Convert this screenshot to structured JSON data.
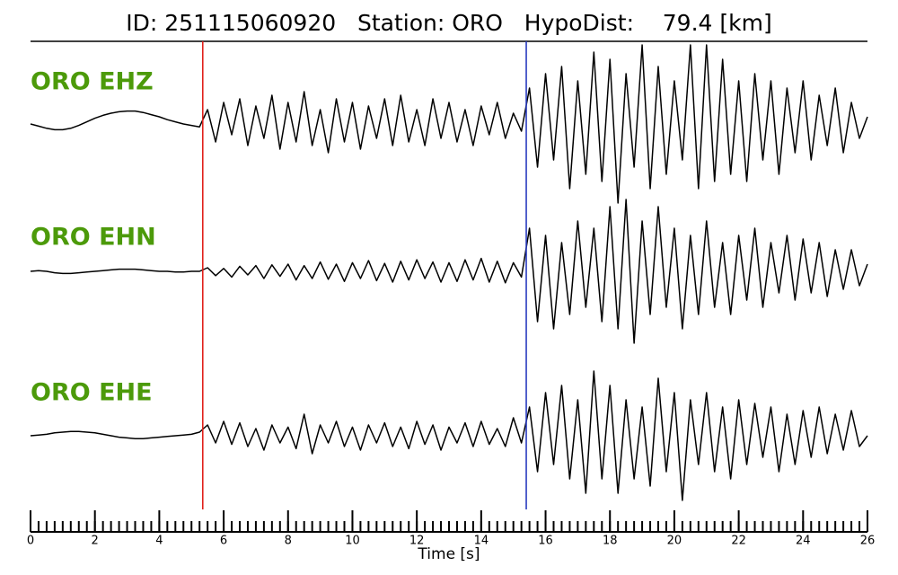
{
  "chart_data": {
    "type": "line",
    "title": "ID: 251115060920   Station: ORO   HypoDist:    79.4 [km]",
    "xlabel": "Time [s]",
    "x": [
      0,
      0.25,
      0.5,
      0.75,
      1,
      1.25,
      1.5,
      1.75,
      2,
      2.25,
      2.5,
      2.75,
      3,
      3.25,
      3.5,
      3.75,
      4,
      4.25,
      4.5,
      4.75,
      5,
      5.25,
      5.5,
      5.75,
      6,
      6.25,
      6.5,
      6.75,
      7,
      7.25,
      7.5,
      7.75,
      8,
      8.25,
      8.5,
      8.75,
      9,
      9.25,
      9.5,
      9.75,
      10,
      10.25,
      10.5,
      10.75,
      11,
      11.25,
      11.5,
      11.75,
      12,
      12.25,
      12.5,
      12.75,
      13,
      13.25,
      13.5,
      13.75,
      14,
      14.25,
      14.5,
      14.75,
      15,
      15.25,
      15.5,
      15.75,
      16,
      16.25,
      16.5,
      16.75,
      17,
      17.25,
      17.5,
      17.75,
      18,
      18.25,
      18.5,
      18.75,
      19,
      19.25,
      19.5,
      19.75,
      20,
      20.25,
      20.5,
      20.75,
      21,
      21.25,
      21.5,
      21.75,
      22,
      22.25,
      22.5,
      22.75,
      23,
      23.25,
      23.5,
      23.75,
      24,
      24.25,
      24.5,
      24.75,
      25,
      25.25,
      25.5,
      25.75,
      26
    ],
    "series": [
      {
        "name": "ORO EHZ",
        "color": "#000000",
        "label_color": "#4c9a0a",
        "values": [
          0.0,
          -0.03,
          -0.06,
          -0.08,
          -0.08,
          -0.06,
          -0.02,
          0.03,
          0.08,
          0.12,
          0.15,
          0.17,
          0.18,
          0.18,
          0.16,
          0.13,
          0.1,
          0.06,
          0.03,
          0.0,
          -0.02,
          -0.04,
          0.2,
          -0.25,
          0.3,
          -0.15,
          0.35,
          -0.3,
          0.25,
          -0.2,
          0.4,
          -0.35,
          0.3,
          -0.25,
          0.45,
          -0.3,
          0.2,
          -0.4,
          0.35,
          -0.25,
          0.3,
          -0.35,
          0.25,
          -0.2,
          0.35,
          -0.3,
          0.4,
          -0.25,
          0.2,
          -0.3,
          0.35,
          -0.2,
          0.3,
          -0.25,
          0.2,
          -0.3,
          0.25,
          -0.15,
          0.3,
          -0.2,
          0.15,
          -0.1,
          0.5,
          -0.6,
          0.7,
          -0.5,
          0.8,
          -0.9,
          0.6,
          -0.7,
          1.0,
          -0.8,
          0.9,
          -1.1,
          0.7,
          -0.6,
          1.1,
          -0.9,
          0.8,
          -0.7,
          0.6,
          -0.5,
          1.1,
          -0.9,
          1.1,
          -0.8,
          0.9,
          -0.7,
          0.6,
          -0.8,
          0.7,
          -0.5,
          0.6,
          -0.7,
          0.5,
          -0.4,
          0.6,
          -0.5,
          0.4,
          -0.3,
          0.5,
          -0.4,
          0.3,
          -0.2,
          0.1
        ]
      },
      {
        "name": "ORO EHN",
        "color": "#000000",
        "label_color": "#4c9a0a",
        "values": [
          0.0,
          0.01,
          0.0,
          -0.02,
          -0.03,
          -0.03,
          -0.02,
          -0.01,
          0.0,
          0.01,
          0.02,
          0.03,
          0.03,
          0.03,
          0.02,
          0.01,
          0.0,
          0.0,
          -0.01,
          -0.01,
          0.0,
          0.0,
          0.05,
          -0.06,
          0.04,
          -0.08,
          0.07,
          -0.05,
          0.08,
          -0.1,
          0.09,
          -0.07,
          0.1,
          -0.12,
          0.08,
          -0.1,
          0.13,
          -0.11,
          0.1,
          -0.14,
          0.12,
          -0.1,
          0.15,
          -0.13,
          0.11,
          -0.15,
          0.14,
          -0.12,
          0.16,
          -0.1,
          0.13,
          -0.15,
          0.12,
          -0.14,
          0.16,
          -0.12,
          0.18,
          -0.15,
          0.14,
          -0.16,
          0.12,
          -0.08,
          0.6,
          -0.7,
          0.5,
          -0.8,
          0.4,
          -0.6,
          0.7,
          -0.5,
          0.6,
          -0.7,
          0.9,
          -0.8,
          1.0,
          -1.0,
          0.7,
          -0.6,
          0.9,
          -0.5,
          0.6,
          -0.8,
          0.5,
          -0.6,
          0.7,
          -0.5,
          0.4,
          -0.6,
          0.5,
          -0.4,
          0.6,
          -0.5,
          0.4,
          -0.3,
          0.5,
          -0.4,
          0.45,
          -0.3,
          0.4,
          -0.35,
          0.3,
          -0.25,
          0.3,
          -0.2,
          0.1
        ]
      },
      {
        "name": "ORO EHE",
        "color": "#000000",
        "label_color": "#4c9a0a",
        "values": [
          0.0,
          0.01,
          0.02,
          0.04,
          0.05,
          0.06,
          0.06,
          0.05,
          0.04,
          0.02,
          0.0,
          -0.02,
          -0.03,
          -0.04,
          -0.04,
          -0.03,
          -0.02,
          -0.01,
          0.0,
          0.01,
          0.02,
          0.05,
          0.15,
          -0.1,
          0.2,
          -0.12,
          0.18,
          -0.15,
          0.1,
          -0.2,
          0.15,
          -0.1,
          0.12,
          -0.18,
          0.3,
          -0.25,
          0.15,
          -0.1,
          0.2,
          -0.15,
          0.12,
          -0.2,
          0.15,
          -0.1,
          0.18,
          -0.15,
          0.12,
          -0.18,
          0.2,
          -0.12,
          0.15,
          -0.2,
          0.12,
          -0.1,
          0.18,
          -0.15,
          0.2,
          -0.12,
          0.1,
          -0.15,
          0.25,
          -0.1,
          0.4,
          -0.5,
          0.6,
          -0.4,
          0.7,
          -0.6,
          0.5,
          -0.8,
          0.9,
          -0.6,
          0.7,
          -0.8,
          0.5,
          -0.6,
          0.4,
          -0.7,
          0.8,
          -0.5,
          0.6,
          -0.9,
          0.5,
          -0.4,
          0.6,
          -0.5,
          0.4,
          -0.6,
          0.5,
          -0.4,
          0.45,
          -0.3,
          0.4,
          -0.5,
          0.3,
          -0.4,
          0.35,
          -0.3,
          0.4,
          -0.25,
          0.3,
          -0.2,
          0.35,
          -0.15,
          0.0
        ]
      }
    ],
    "markers": [
      {
        "x": 5.35,
        "color": "#e0201a"
      },
      {
        "x": 15.4,
        "color": "#2a3cc0"
      }
    ],
    "xlim": [
      0,
      26
    ],
    "ylim": [
      -1,
      1
    ],
    "xticks": [
      0,
      2,
      4,
      6,
      8,
      10,
      12,
      14,
      16,
      18,
      20,
      22,
      24,
      26
    ],
    "xminor": 0.25
  }
}
